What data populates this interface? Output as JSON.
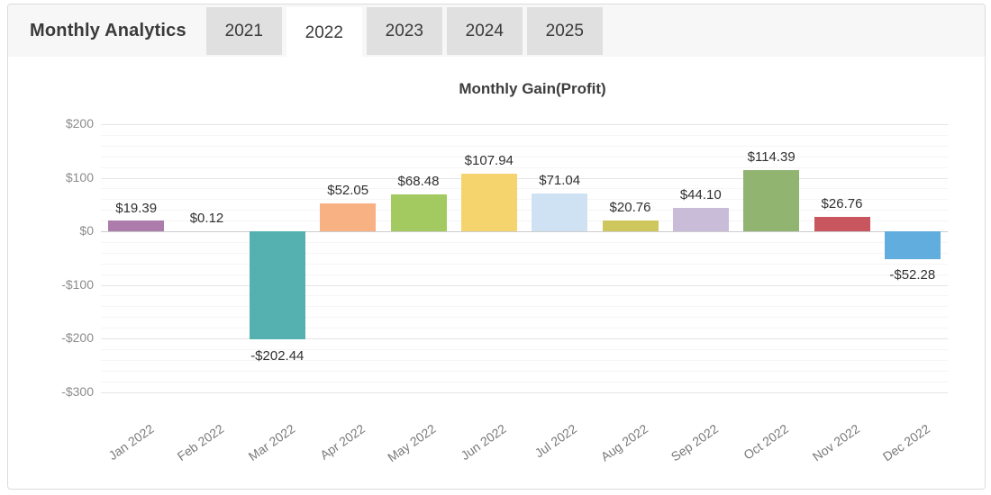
{
  "header": {
    "title": "Monthly Analytics",
    "tabs": [
      {
        "label": "2021",
        "selected": false
      },
      {
        "label": "2022",
        "selected": true
      },
      {
        "label": "2023",
        "selected": false
      },
      {
        "label": "2024",
        "selected": false
      },
      {
        "label": "2025",
        "selected": false
      }
    ]
  },
  "chart_data": {
    "type": "bar",
    "title": "Monthly Gain(Profit)",
    "categories": [
      "Jan 2022",
      "Feb 2022",
      "Mar 2022",
      "Apr 2022",
      "May 2022",
      "Jun 2022",
      "Jul 2022",
      "Aug 2022",
      "Sep 2022",
      "Oct 2022",
      "Nov 2022",
      "Dec 2022"
    ],
    "values": [
      19.39,
      0.12,
      -202.44,
      52.05,
      68.48,
      107.94,
      71.04,
      20.76,
      44.1,
      114.39,
      26.76,
      -52.28
    ],
    "value_labels": [
      "$19.39",
      "$0.12",
      "-$202.44",
      "$52.05",
      "$68.48",
      "$107.94",
      "$71.04",
      "$20.76",
      "$44.10",
      "$114.39",
      "$26.76",
      "-$52.28"
    ],
    "bar_colors": [
      "#ad7cad",
      "#cccccc",
      "#54b1af",
      "#f8b183",
      "#a2ca61",
      "#f5d46d",
      "#cfe2f3",
      "#cdc75e",
      "#c9bcd9",
      "#92b471",
      "#c9565e",
      "#61aede"
    ],
    "y_ticks": [
      {
        "value": 200,
        "label": "$200"
      },
      {
        "value": 100,
        "label": "$100"
      },
      {
        "value": 0,
        "label": "$0"
      },
      {
        "value": -100,
        "label": "-$100"
      },
      {
        "value": -200,
        "label": "-$200"
      },
      {
        "value": -300,
        "label": "-$300"
      }
    ],
    "ylim": [
      -300,
      200
    ],
    "minor_grid_step": 20,
    "grid": true,
    "legend": false,
    "xlabel": "",
    "ylabel": ""
  },
  "colors": {
    "header_bg": "#f7f7f7",
    "tab_bg": "#e0e0e0",
    "tab_selected_bg": "#ffffff",
    "card_border": "#dcdcdc",
    "grid_major": "#e5e5e5",
    "grid_minor": "#f5f5f5",
    "zero_line": "#cccccc"
  }
}
